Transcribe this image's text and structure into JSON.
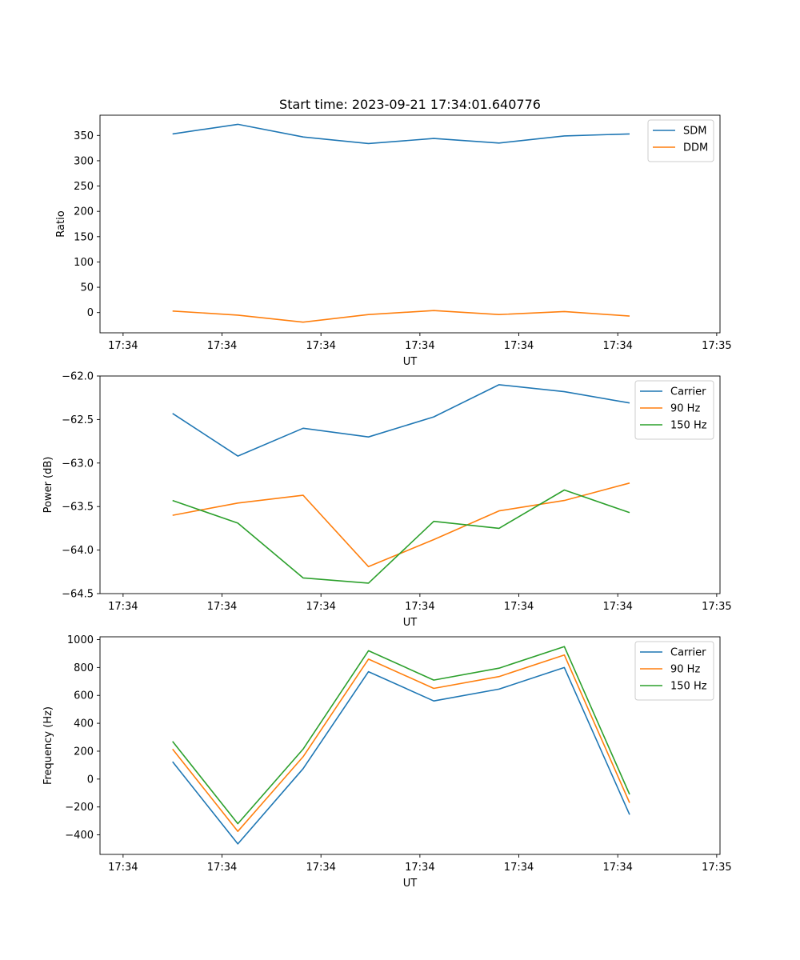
{
  "chart_data": [
    {
      "type": "line",
      "title": "Start time: 2023-09-21 17:34:01.640776",
      "xlabel": "UT",
      "ylabel": "Ratio",
      "x_tick_labels": [
        "17:34",
        "17:34",
        "17:34",
        "17:34",
        "17:34",
        "17:34",
        "17:35"
      ],
      "x": [
        0,
        1,
        2,
        3,
        4,
        5,
        6,
        7
      ],
      "ylim": [
        -40,
        390
      ],
      "yticks": [
        0,
        50,
        100,
        150,
        200,
        250,
        300,
        350
      ],
      "y_tick_labels": [
        "0",
        "50",
        "100",
        "150",
        "200",
        "250",
        "300",
        "350"
      ],
      "legend": "top-right",
      "series": [
        {
          "name": "SDM",
          "color": "#1f77b4",
          "values": [
            353,
            372,
            347,
            334,
            344,
            335,
            349,
            353
          ]
        },
        {
          "name": "DDM",
          "color": "#ff7f0e",
          "values": [
            3,
            -5,
            -19,
            -4,
            4,
            -4,
            2,
            -7
          ]
        }
      ]
    },
    {
      "type": "line",
      "title": "",
      "xlabel": "UT",
      "ylabel": "Power (dB)",
      "x_tick_labels": [
        "17:34",
        "17:34",
        "17:34",
        "17:34",
        "17:34",
        "17:34",
        "17:35"
      ],
      "x": [
        0,
        1,
        2,
        3,
        4,
        5,
        6,
        7
      ],
      "ylim": [
        -64.5,
        -62.0
      ],
      "yticks": [
        -64.5,
        -64.0,
        -63.5,
        -63.0,
        -62.5,
        -62.0
      ],
      "y_tick_labels": [
        "−64.5",
        "−64.0",
        "−63.5",
        "−63.0",
        "−62.5",
        "−62.0"
      ],
      "legend": "top-right",
      "series": [
        {
          "name": "Carrier",
          "color": "#1f77b4",
          "values": [
            -62.43,
            -62.92,
            -62.6,
            -62.7,
            -62.47,
            -62.1,
            -62.18,
            -62.31
          ]
        },
        {
          "name": "90 Hz",
          "color": "#ff7f0e",
          "values": [
            -63.6,
            -63.46,
            -63.37,
            -64.19,
            -63.88,
            -63.55,
            -63.43,
            -63.23
          ]
        },
        {
          "name": "150 Hz",
          "color": "#2ca02c",
          "values": [
            -63.43,
            -63.69,
            -64.32,
            -64.38,
            -63.67,
            -63.75,
            -63.31,
            -63.57
          ]
        }
      ]
    },
    {
      "type": "line",
      "title": "",
      "xlabel": "UT",
      "ylabel": "Frequency (Hz)",
      "x_tick_labels": [
        "17:34",
        "17:34",
        "17:34",
        "17:34",
        "17:34",
        "17:34",
        "17:35"
      ],
      "x": [
        0,
        1,
        2,
        3,
        4,
        5,
        6,
        7
      ],
      "ylim": [
        -540,
        1020
      ],
      "yticks": [
        -400,
        -200,
        0,
        200,
        400,
        600,
        800,
        1000
      ],
      "y_tick_labels": [
        "−400",
        "−200",
        "0",
        "200",
        "400",
        "600",
        "800",
        "1000"
      ],
      "legend": "top-right",
      "series": [
        {
          "name": "Carrier",
          "color": "#1f77b4",
          "values": [
            125,
            -465,
            75,
            770,
            560,
            645,
            800,
            -255
          ]
        },
        {
          "name": "90 Hz",
          "color": "#ff7f0e",
          "values": [
            215,
            -375,
            160,
            860,
            650,
            735,
            890,
            -170
          ]
        },
        {
          "name": "150 Hz",
          "color": "#2ca02c",
          "values": [
            270,
            -320,
            215,
            920,
            710,
            795,
            950,
            -110
          ]
        }
      ]
    }
  ]
}
